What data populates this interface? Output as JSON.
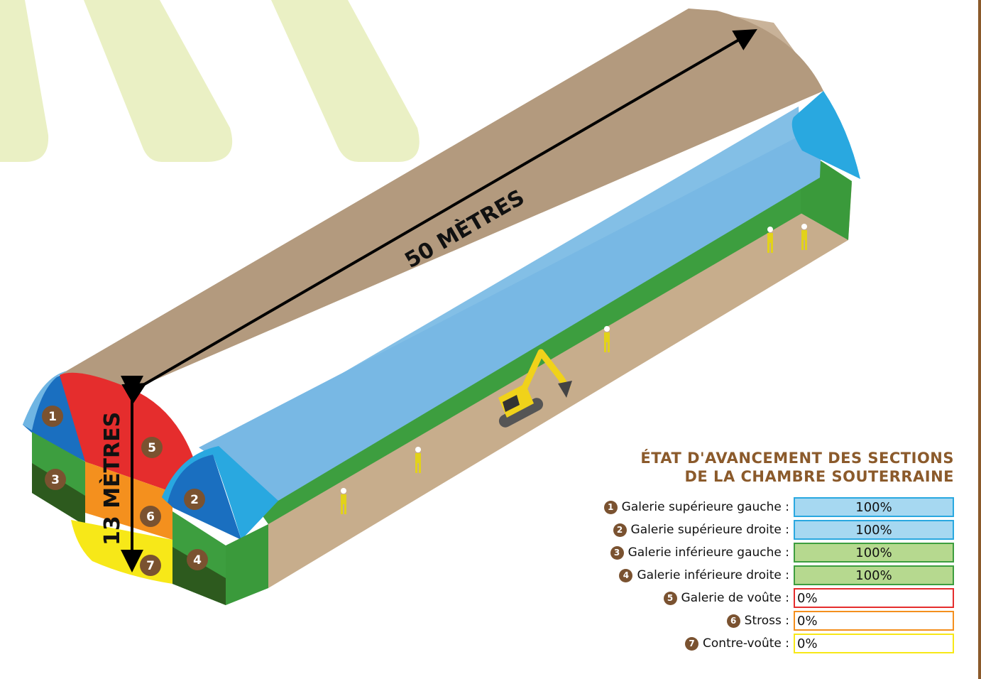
{
  "colors": {
    "brown": "#8b5a2b",
    "badge": "#7a5230",
    "sky_blue": "#29a8e0",
    "light_blue": "#83bfe6",
    "green": "#3d9e3f",
    "dark_green": "#2d5a1e",
    "red": "#e52d2d",
    "orange": "#f4901e",
    "yellow": "#f7e818",
    "tunnel_floor": "#c7ad8c",
    "vault": "#ad9275",
    "stripe": "#eaf0c4"
  },
  "diagram": {
    "length_label": "50 MÈTRES",
    "height_label": "13 MÈTRES",
    "badges": [
      "1",
      "2",
      "3",
      "4",
      "5",
      "6",
      "7"
    ],
    "excavator_icon": "excavator-icon",
    "worker_icon": "worker-icon"
  },
  "legend": {
    "title_line1": "ÉTAT D'AVANCEMENT DES SECTIONS",
    "title_line2": "DE LA CHAMBRE SOUTERRAINE",
    "items": [
      {
        "num": "1",
        "label": "Galerie supérieure gauche :",
        "value_text": "100%",
        "value": 100,
        "fill": "#a6d8f1",
        "border": "#29a8e0"
      },
      {
        "num": "2",
        "label": "Galerie supérieure droite :",
        "value_text": "100%",
        "value": 100,
        "fill": "#a6d8f1",
        "border": "#29a8e0"
      },
      {
        "num": "3",
        "label": "Galerie inférieure gauche :",
        "value_text": "100%",
        "value": 100,
        "fill": "#b6d98f",
        "border": "#3d9e3f"
      },
      {
        "num": "4",
        "label": "Galerie inférieure droite :",
        "value_text": "100%",
        "value": 100,
        "fill": "#b6d98f",
        "border": "#3d9e3f"
      },
      {
        "num": "5",
        "label": "Galerie de voûte :",
        "value_text": "0%",
        "value": 0,
        "fill": "#ffffff",
        "border": "#e52d2d"
      },
      {
        "num": "6",
        "label": "Stross :",
        "value_text": "0%",
        "value": 0,
        "fill": "#ffffff",
        "border": "#f4901e"
      },
      {
        "num": "7",
        "label": "Contre-voûte :",
        "value_text": "0%",
        "value": 0,
        "fill": "#ffffff",
        "border": "#f7e818"
      }
    ]
  }
}
